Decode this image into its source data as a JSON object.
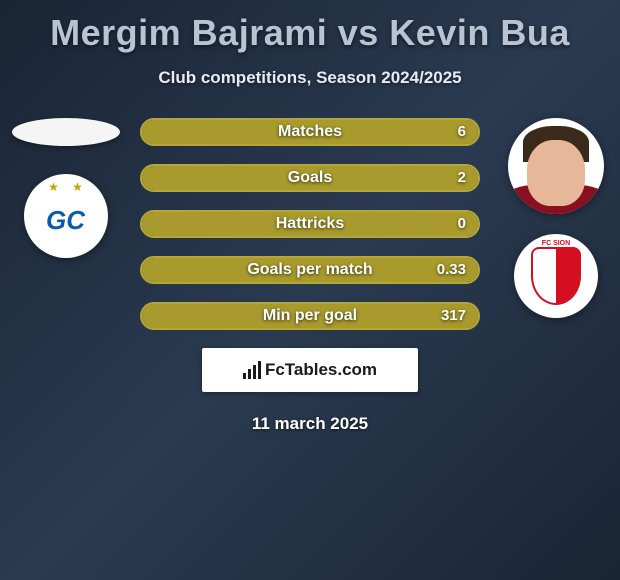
{
  "title": "Mergim Bajrami vs Kevin Bua",
  "subtitle": "Club competitions, Season 2024/2025",
  "date": "11 march 2025",
  "logo_text": "FcTables.com",
  "colors": {
    "bar_fill": "#a89a2c",
    "bar_border": "#b5a735",
    "title_color": "#b8c4d4"
  },
  "player_left": {
    "name": "Mergim Bajrami",
    "club": "GC"
  },
  "player_right": {
    "name": "Kevin Bua",
    "club": "FC SION"
  },
  "stats": [
    {
      "label": "Matches",
      "value": "6",
      "fill_pct": 100
    },
    {
      "label": "Goals",
      "value": "2",
      "fill_pct": 100
    },
    {
      "label": "Hattricks",
      "value": "0",
      "fill_pct": 100
    },
    {
      "label": "Goals per match",
      "value": "0.33",
      "fill_pct": 100
    },
    {
      "label": "Min per goal",
      "value": "317",
      "fill_pct": 100
    }
  ]
}
